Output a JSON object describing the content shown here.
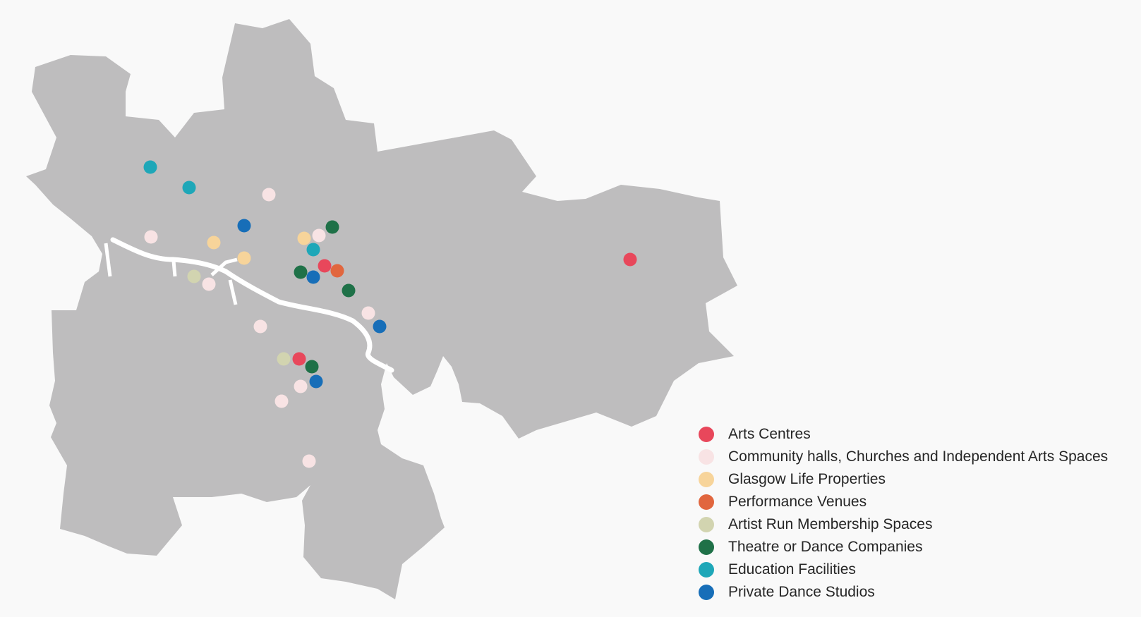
{
  "map": {
    "background_color": "#f9f9f9",
    "land_color": "#bebdbe",
    "river_color": "#ffffff"
  },
  "legend": {
    "items": [
      {
        "key": "arts",
        "label": "Arts Centres",
        "color": "#e8475b"
      },
      {
        "key": "community",
        "label": "Community halls, Churches and Independent Arts Spaces",
        "color": "#f8e3e4"
      },
      {
        "key": "glasgow",
        "label": "Glasgow Life Properties",
        "color": "#f7d49a"
      },
      {
        "key": "performance",
        "label": "Performance Venues",
        "color": "#e1663e"
      },
      {
        "key": "artist",
        "label": "Artist Run Membership Spaces",
        "color": "#d2d4b0"
      },
      {
        "key": "theatre",
        "label": "Theatre or Dance Companies",
        "color": "#1f7148"
      },
      {
        "key": "education",
        "label": "Education Facilities",
        "color": "#1ea7b8"
      },
      {
        "key": "private",
        "label": "Private Dance Studios",
        "color": "#176eb8"
      }
    ]
  },
  "venues": [
    {
      "category": "education"
    },
    {
      "category": "education"
    },
    {
      "category": "community"
    },
    {
      "category": "private"
    },
    {
      "category": "community"
    },
    {
      "category": "glasgow"
    },
    {
      "category": "glasgow"
    },
    {
      "category": "glasgow"
    },
    {
      "category": "community"
    },
    {
      "category": "theatre"
    },
    {
      "category": "education"
    },
    {
      "category": "arts"
    },
    {
      "category": "performance"
    },
    {
      "category": "theatre"
    },
    {
      "category": "private"
    },
    {
      "category": "theatre"
    },
    {
      "category": "artist"
    },
    {
      "category": "community"
    },
    {
      "category": "community"
    },
    {
      "category": "private"
    },
    {
      "category": "community"
    },
    {
      "category": "artist"
    },
    {
      "category": "arts"
    },
    {
      "category": "theatre"
    },
    {
      "category": "private"
    },
    {
      "category": "community"
    },
    {
      "category": "community"
    },
    {
      "category": "community"
    },
    {
      "category": "arts"
    }
  ]
}
